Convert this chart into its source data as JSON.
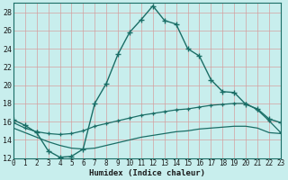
{
  "xlabel": "Humidex (Indice chaleur)",
  "xlim": [
    0,
    23
  ],
  "ylim": [
    12,
    29
  ],
  "yticks": [
    12,
    14,
    16,
    18,
    20,
    22,
    24,
    26,
    28
  ],
  "xticks": [
    0,
    1,
    2,
    3,
    4,
    5,
    6,
    7,
    8,
    9,
    10,
    11,
    12,
    13,
    14,
    15,
    16,
    17,
    18,
    19,
    20,
    21,
    22,
    23
  ],
  "bg_color": "#c8eeed",
  "grid_color": "#b0d8d6",
  "line_color": "#1a6e66",
  "line1_x": [
    0,
    1,
    2,
    3,
    4,
    5,
    6,
    7,
    8,
    9,
    10,
    11,
    12,
    13,
    14,
    15,
    16,
    17,
    18,
    19,
    20,
    21,
    22,
    23
  ],
  "line1_y": [
    16.2,
    15.6,
    14.8,
    12.8,
    12.1,
    12.2,
    13.0,
    18.0,
    20.2,
    23.4,
    25.8,
    27.2,
    28.7,
    27.1,
    26.7,
    24.0,
    23.2,
    20.6,
    19.3,
    19.2,
    17.9,
    17.4,
    16.3,
    15.9
  ],
  "line2_x": [
    0,
    1,
    2,
    3,
    4,
    5,
    6,
    7,
    8,
    9,
    10,
    11,
    12,
    13,
    14,
    15,
    16,
    17,
    18,
    19,
    20,
    21,
    22,
    23
  ],
  "line2_y": [
    15.9,
    15.3,
    14.9,
    14.7,
    14.6,
    14.7,
    15.0,
    15.5,
    15.8,
    16.1,
    16.4,
    16.7,
    16.9,
    17.1,
    17.3,
    17.4,
    17.6,
    17.8,
    17.9,
    18.0,
    18.0,
    17.3,
    16.1,
    14.8
  ],
  "line3_x": [
    0,
    1,
    2,
    3,
    4,
    5,
    6,
    7,
    8,
    9,
    10,
    11,
    12,
    13,
    14,
    15,
    16,
    17,
    18,
    19,
    20,
    21,
    22,
    23
  ],
  "line3_y": [
    15.3,
    14.8,
    14.3,
    13.8,
    13.4,
    13.1,
    13.0,
    13.1,
    13.4,
    13.7,
    14.0,
    14.3,
    14.5,
    14.7,
    14.9,
    15.0,
    15.2,
    15.3,
    15.4,
    15.5,
    15.5,
    15.3,
    14.8,
    14.7
  ]
}
